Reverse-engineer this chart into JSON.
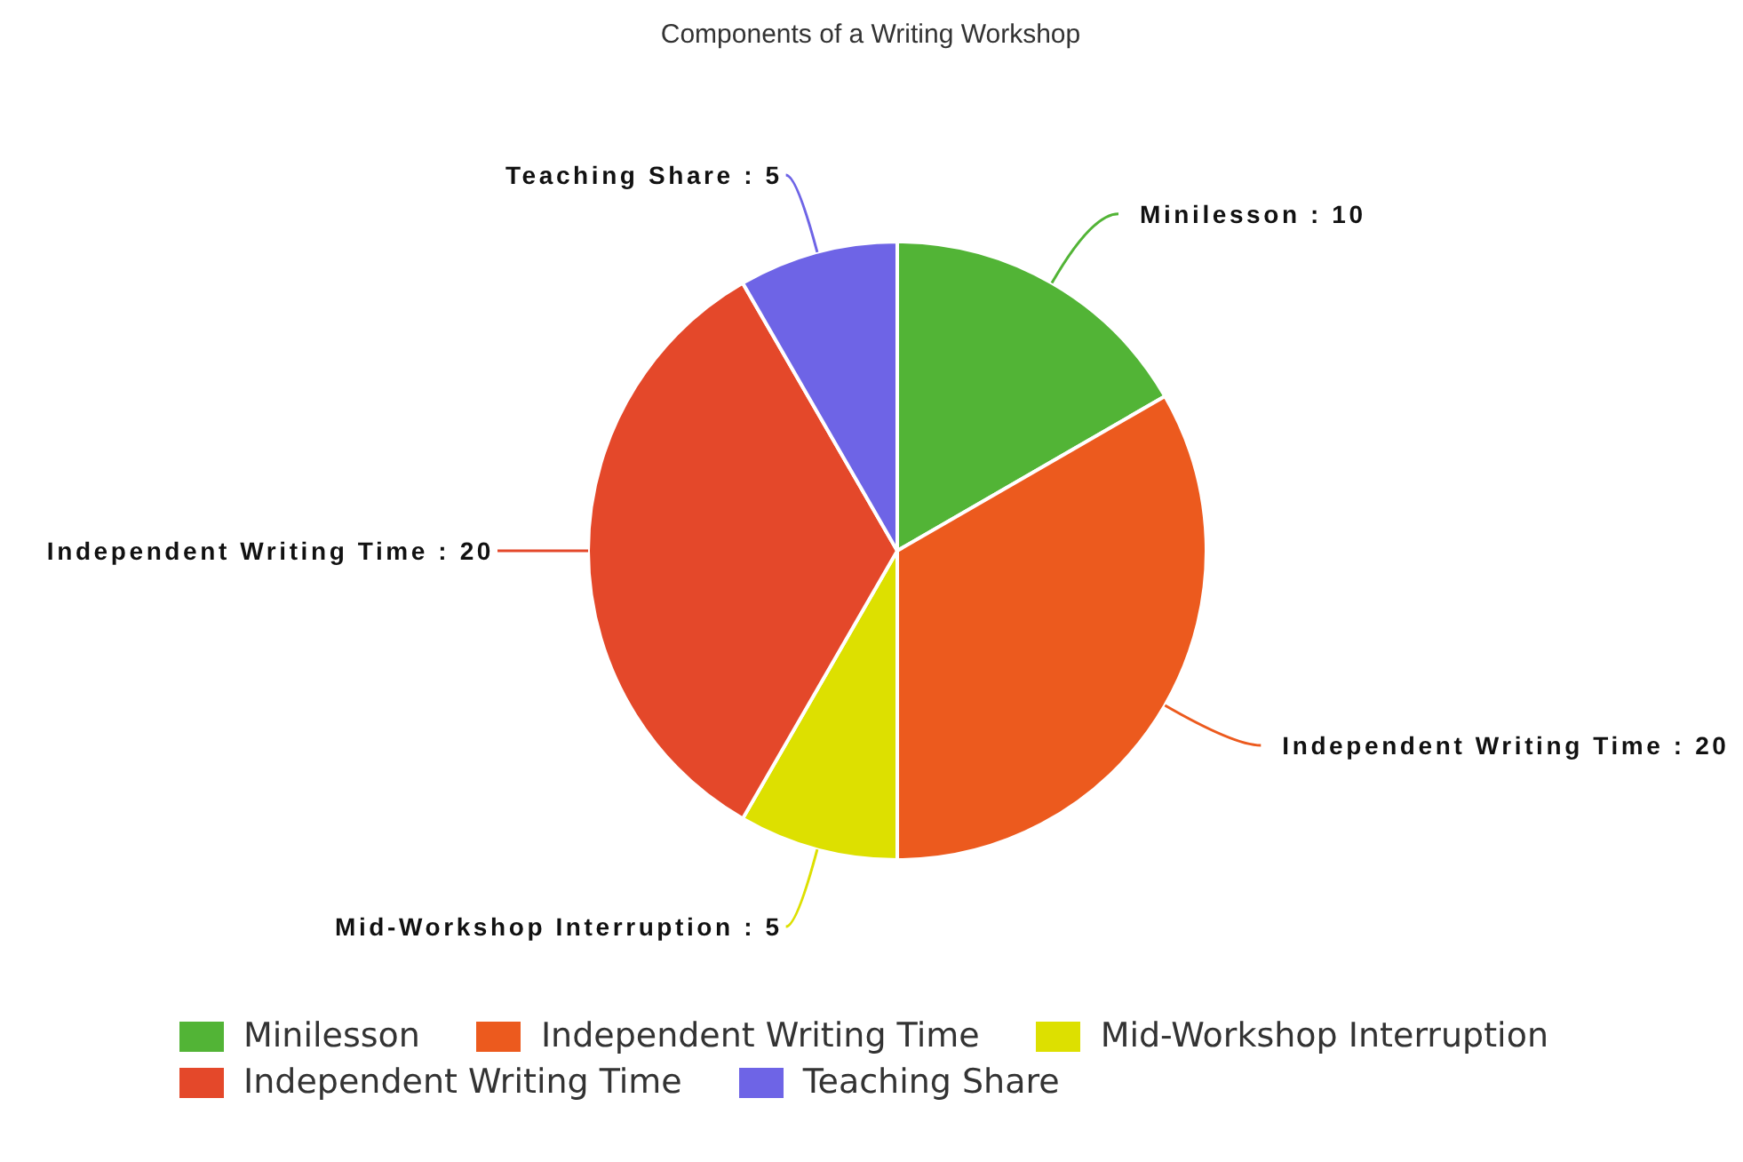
{
  "chart_data": {
    "type": "pie",
    "title": "Components of a Writing Workshop",
    "categories": [
      "Minilesson",
      "Independent Writing Time",
      "Mid-Workshop Interruption",
      "Independent Writing Time",
      "Teaching Share"
    ],
    "values": [
      10,
      20,
      5,
      20,
      5
    ],
    "value_labels": [
      ": 10",
      ": 20",
      ": 5",
      ": 20",
      ": 5"
    ],
    "colors": [
      "#52b436",
      "#ec5a1e",
      "#dde000",
      "#e4482a",
      "#6e64e6"
    ],
    "legend": "bottom"
  }
}
